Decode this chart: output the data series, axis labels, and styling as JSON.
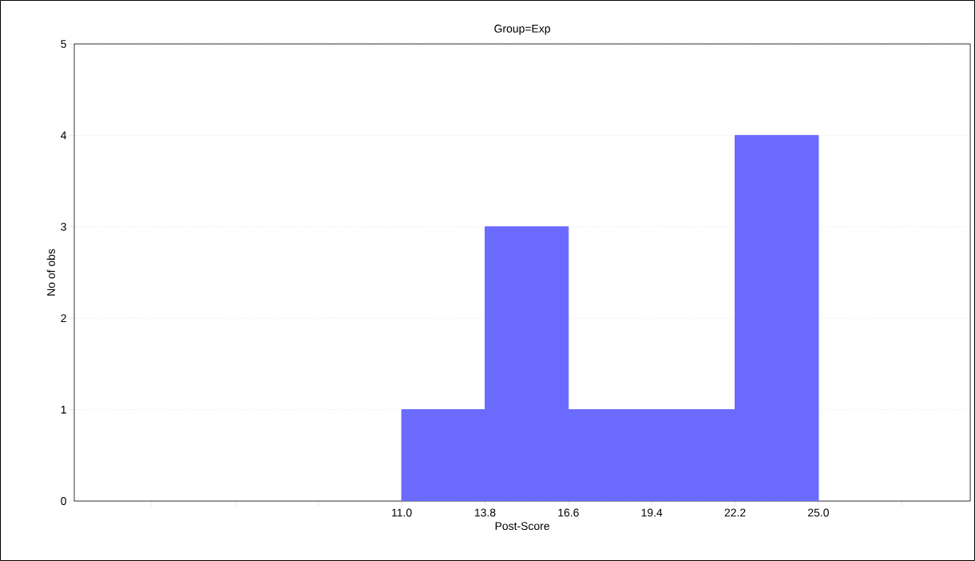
{
  "chart_data": {
    "type": "histogram",
    "title": "Group=Exp",
    "xlabel": "Post-Score",
    "ylabel": "No of obs",
    "bins": [
      11.0,
      13.8,
      16.6,
      19.4,
      22.2,
      25.0
    ],
    "values": [
      1,
      3,
      1,
      1,
      4
    ],
    "color": "#6a6aff",
    "xlim": [
      0,
      30.1
    ],
    "xticks": [
      {
        "value": 2.6,
        "label": null
      },
      {
        "value": 5.4,
        "label": null
      },
      {
        "value": 8.2,
        "label": null
      },
      {
        "value": 11.0,
        "label": "11.0"
      },
      {
        "value": 13.8,
        "label": "13.8"
      },
      {
        "value": 16.6,
        "label": "16.6"
      },
      {
        "value": 19.4,
        "label": "19.4"
      },
      {
        "value": 22.2,
        "label": "22.2"
      },
      {
        "value": 25.0,
        "label": "25.0"
      },
      {
        "value": 27.8,
        "label": null
      }
    ],
    "ylim": [
      0,
      5
    ],
    "yticks": [
      0,
      1,
      2,
      3,
      4,
      5
    ],
    "grid": "y"
  }
}
